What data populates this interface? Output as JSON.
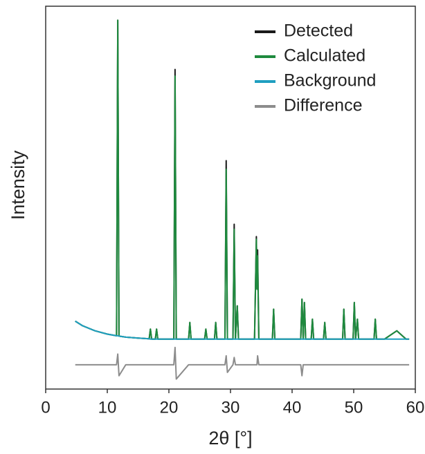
{
  "chart_data": {
    "type": "line",
    "xlabel": "2θ [°]",
    "ylabel": "Intensity",
    "xlim": [
      0,
      60
    ],
    "xticks": [
      0,
      10,
      20,
      30,
      40,
      50,
      60
    ],
    "ylim": [
      -15,
      100
    ],
    "legend": "upper right",
    "x": [
      4.8,
      6,
      8,
      10,
      11.5,
      11.7,
      11.9,
      13,
      15,
      16.8,
      17,
      17.2,
      17.8,
      18,
      18.2,
      20.8,
      21,
      21.2,
      23.2,
      23.4,
      23.6,
      25.8,
      26,
      26.2,
      27.4,
      27.6,
      27.8,
      29.1,
      29.3,
      29.5,
      30.4,
      30.6,
      30.8,
      31.1,
      31.3,
      33.9,
      34.2,
      34.3,
      34.4,
      34.6,
      36.8,
      37,
      37.2,
      41.4,
      41.6,
      41.8,
      42,
      42.2,
      43.1,
      43.3,
      43.5,
      45.1,
      45.3,
      45.5,
      48.2,
      48.4,
      48.6,
      49.9,
      50.1,
      50.3,
      50.6,
      50.8,
      53.3,
      53.5,
      53.7,
      55,
      57,
      58.5,
      59
    ],
    "series": [
      {
        "name": "Detected",
        "color": "#1a1a1a",
        "values": [
          5.4,
          4,
          2.5,
          1.5,
          1,
          95.8,
          0.9,
          0.6,
          0.3,
          0.1,
          3,
          0,
          0,
          3,
          0,
          0,
          81,
          0,
          0,
          5,
          0,
          0,
          3,
          0,
          0,
          5,
          0,
          0,
          53.6,
          0,
          0,
          34.5,
          0,
          10,
          0,
          0,
          30.8,
          15,
          26.8,
          0,
          0,
          9,
          0,
          0,
          12,
          0,
          11,
          0,
          0,
          6,
          0,
          0,
          5,
          0,
          0,
          9,
          0,
          0,
          11,
          0,
          6,
          0,
          0,
          6,
          0,
          0,
          2.5,
          0,
          0
        ]
      },
      {
        "name": "Calculated",
        "color": "#1e8a3e",
        "values": [
          5.4,
          4,
          2.5,
          1.5,
          1,
          95.8,
          0.9,
          0.6,
          0.3,
          0.1,
          3,
          0,
          0,
          3,
          0,
          0,
          79,
          0,
          0,
          5,
          0,
          0,
          3,
          0,
          0,
          5,
          0,
          0,
          51,
          0,
          0,
          33,
          0,
          10,
          0,
          0,
          30,
          15,
          25,
          0,
          0,
          9,
          0,
          0,
          12,
          0,
          11,
          0,
          0,
          6,
          0,
          0,
          5,
          0,
          0,
          9,
          0,
          0,
          11,
          0,
          6,
          0,
          0,
          6,
          0,
          0,
          2.5,
          0,
          0
        ]
      },
      {
        "name": "Background",
        "color": "#1f9fc0",
        "values": [
          5.4,
          4,
          2.5,
          1.5,
          1,
          1,
          0.9,
          0.6,
          0.3,
          0.1,
          0,
          0,
          0,
          0,
          0,
          0,
          0,
          0,
          0,
          0,
          0,
          0,
          0,
          0,
          0,
          0,
          0,
          0,
          0,
          0,
          0,
          0,
          0,
          0,
          0,
          0,
          0,
          0,
          0,
          0,
          0,
          0,
          0,
          0,
          0,
          0,
          0,
          0,
          0,
          0,
          0,
          0,
          0,
          0,
          0,
          0,
          0,
          0,
          0,
          0,
          0,
          0,
          0,
          0,
          0,
          0,
          0,
          0,
          0
        ]
      },
      {
        "name": "Difference",
        "color": "#8c8c8c",
        "values": [
          -7.7,
          -7.7,
          -7.7,
          -7.7,
          -7.7,
          -4.5,
          -11,
          -7.7,
          -7.7,
          -7.7,
          -7.7,
          -7.7,
          -7.7,
          -7.7,
          -7.7,
          -7.7,
          -2.5,
          -12,
          -7.7,
          -7.7,
          -7.7,
          -7.7,
          -7.7,
          -7.7,
          -7.7,
          -7.7,
          -7.7,
          -7.7,
          -5,
          -10,
          -7.7,
          -5.5,
          -7.7,
          -7.7,
          -7.7,
          -7.7,
          -7.7,
          -7.7,
          -5,
          -7.7,
          -7.7,
          -7.7,
          -7.7,
          -7.7,
          -11,
          -7.7,
          -7.7,
          -7.7,
          -7.7,
          -7.7,
          -7.7,
          -7.7,
          -7.7,
          -7.7,
          -7.7,
          -7.7,
          -7.7,
          -7.7,
          -7.7,
          -7.7,
          -7.7,
          -7.7,
          -7.7,
          -7.7,
          -7.7,
          -7.7,
          -7.7,
          -7.7,
          -7.7
        ]
      }
    ]
  }
}
